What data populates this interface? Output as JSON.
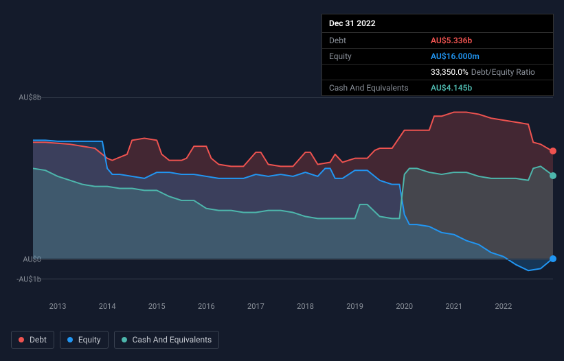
{
  "background_color": "#141b2b",
  "tooltip": {
    "date": "Dec 31 2022",
    "rows": [
      {
        "key": "Debt",
        "value": "AU$5.336b",
        "cls": "debt"
      },
      {
        "key": "Equity",
        "value": "AU$16.000m",
        "cls": "equity"
      },
      {
        "key": "",
        "value": "33,350.0%",
        "suffix": "Debt/Equity Ratio",
        "cls": ""
      },
      {
        "key": "Cash And Equivalents",
        "value": "AU$4.145b",
        "cls": "cash"
      }
    ]
  },
  "chart": {
    "type": "area",
    "y_axis_ticks": [
      {
        "label": "AU$8b",
        "value": 8
      },
      {
        "label": "AU$0",
        "value": 0
      },
      {
        "label": "-AU$1b",
        "value": -1
      }
    ],
    "ylim": [
      -1,
      8
    ],
    "x_axis_ticks": [
      "2013",
      "2014",
      "2015",
      "2016",
      "2017",
      "2018",
      "2019",
      "2020",
      "2021",
      "2022"
    ],
    "xlim": [
      2012.5,
      2023.0
    ],
    "grid_color": "#3a4250",
    "label_fontsize": 11,
    "label_color": "#8a9099",
    "series": {
      "debt": {
        "color": "#ef5350",
        "fill": "rgba(239,83,80,0.22)",
        "stroke_width": 2,
        "data": [
          [
            2012.5,
            5.8
          ],
          [
            2012.75,
            5.8
          ],
          [
            2013.0,
            5.75
          ],
          [
            2013.25,
            5.7
          ],
          [
            2013.5,
            5.6
          ],
          [
            2013.75,
            5.5
          ],
          [
            2014.0,
            5.0
          ],
          [
            2014.1,
            4.9
          ],
          [
            2014.2,
            5.0
          ],
          [
            2014.4,
            5.2
          ],
          [
            2014.5,
            5.9
          ],
          [
            2014.75,
            6.0
          ],
          [
            2015.0,
            5.9
          ],
          [
            2015.1,
            5.2
          ],
          [
            2015.25,
            4.9
          ],
          [
            2015.5,
            4.9
          ],
          [
            2015.6,
            5.0
          ],
          [
            2015.75,
            5.6
          ],
          [
            2016.0,
            5.6
          ],
          [
            2016.1,
            5.0
          ],
          [
            2016.25,
            4.7
          ],
          [
            2016.5,
            4.6
          ],
          [
            2016.75,
            4.6
          ],
          [
            2017.0,
            5.3
          ],
          [
            2017.1,
            5.3
          ],
          [
            2017.25,
            4.7
          ],
          [
            2017.5,
            4.6
          ],
          [
            2017.75,
            4.6
          ],
          [
            2018.0,
            5.3
          ],
          [
            2018.1,
            5.3
          ],
          [
            2018.25,
            4.7
          ],
          [
            2018.5,
            4.8
          ],
          [
            2018.6,
            5.2
          ],
          [
            2018.75,
            4.8
          ],
          [
            2019.0,
            5.0
          ],
          [
            2019.25,
            5.0
          ],
          [
            2019.4,
            5.4
          ],
          [
            2019.5,
            5.5
          ],
          [
            2019.75,
            5.5
          ],
          [
            2020.0,
            6.4
          ],
          [
            2020.25,
            6.4
          ],
          [
            2020.5,
            6.4
          ],
          [
            2020.6,
            7.1
          ],
          [
            2020.75,
            7.1
          ],
          [
            2021.0,
            7.3
          ],
          [
            2021.25,
            7.3
          ],
          [
            2021.5,
            7.2
          ],
          [
            2021.75,
            7.0
          ],
          [
            2022.0,
            6.9
          ],
          [
            2022.25,
            6.8
          ],
          [
            2022.5,
            6.7
          ],
          [
            2022.6,
            5.8
          ],
          [
            2022.75,
            5.7
          ],
          [
            2023.0,
            5.34
          ]
        ],
        "end_dot": [
          2023.0,
          5.34
        ]
      },
      "equity": {
        "color": "#2196f3",
        "fill": "rgba(33,150,243,0.22)",
        "stroke_width": 2,
        "data": [
          [
            2012.5,
            5.9
          ],
          [
            2012.75,
            5.9
          ],
          [
            2013.0,
            5.85
          ],
          [
            2013.25,
            5.85
          ],
          [
            2013.5,
            5.85
          ],
          [
            2013.75,
            5.85
          ],
          [
            2013.9,
            5.85
          ],
          [
            2014.0,
            4.5
          ],
          [
            2014.1,
            4.2
          ],
          [
            2014.25,
            4.2
          ],
          [
            2014.5,
            4.1
          ],
          [
            2014.75,
            4.0
          ],
          [
            2015.0,
            4.3
          ],
          [
            2015.25,
            4.3
          ],
          [
            2015.5,
            4.2
          ],
          [
            2015.75,
            4.2
          ],
          [
            2016.0,
            4.1
          ],
          [
            2016.25,
            4.0
          ],
          [
            2016.5,
            4.0
          ],
          [
            2016.75,
            4.0
          ],
          [
            2017.0,
            4.2
          ],
          [
            2017.25,
            4.1
          ],
          [
            2017.5,
            4.2
          ],
          [
            2017.75,
            4.1
          ],
          [
            2018.0,
            4.3
          ],
          [
            2018.25,
            4.1
          ],
          [
            2018.4,
            4.5
          ],
          [
            2018.5,
            4.5
          ],
          [
            2018.6,
            4.0
          ],
          [
            2018.75,
            4.0
          ],
          [
            2019.0,
            4.4
          ],
          [
            2019.25,
            4.4
          ],
          [
            2019.5,
            3.9
          ],
          [
            2019.75,
            3.7
          ],
          [
            2019.9,
            3.7
          ],
          [
            2020.0,
            2.2
          ],
          [
            2020.1,
            1.7
          ],
          [
            2020.25,
            1.7
          ],
          [
            2020.5,
            1.6
          ],
          [
            2020.75,
            1.3
          ],
          [
            2021.0,
            1.2
          ],
          [
            2021.25,
            0.9
          ],
          [
            2021.5,
            0.7
          ],
          [
            2021.75,
            0.3
          ],
          [
            2022.0,
            0.1
          ],
          [
            2022.25,
            -0.3
          ],
          [
            2022.5,
            -0.6
          ],
          [
            2022.75,
            -0.5
          ],
          [
            2023.0,
            0.016
          ]
        ],
        "end_dot": [
          2023.0,
          0.016
        ]
      },
      "cash": {
        "color": "#4db6ac",
        "fill": "rgba(77,182,172,0.22)",
        "stroke_width": 2,
        "data": [
          [
            2012.5,
            4.5
          ],
          [
            2012.75,
            4.4
          ],
          [
            2013.0,
            4.1
          ],
          [
            2013.25,
            3.9
          ],
          [
            2013.5,
            3.7
          ],
          [
            2013.75,
            3.6
          ],
          [
            2014.0,
            3.6
          ],
          [
            2014.25,
            3.5
          ],
          [
            2014.5,
            3.5
          ],
          [
            2014.75,
            3.4
          ],
          [
            2015.0,
            3.4
          ],
          [
            2015.25,
            3.1
          ],
          [
            2015.5,
            2.9
          ],
          [
            2015.75,
            2.9
          ],
          [
            2016.0,
            2.5
          ],
          [
            2016.25,
            2.4
          ],
          [
            2016.5,
            2.4
          ],
          [
            2016.75,
            2.3
          ],
          [
            2017.0,
            2.3
          ],
          [
            2017.25,
            2.4
          ],
          [
            2017.5,
            2.4
          ],
          [
            2017.75,
            2.3
          ],
          [
            2018.0,
            2.1
          ],
          [
            2018.25,
            2.0
          ],
          [
            2018.5,
            2.0
          ],
          [
            2018.75,
            2.0
          ],
          [
            2019.0,
            2.0
          ],
          [
            2019.1,
            2.7
          ],
          [
            2019.25,
            2.7
          ],
          [
            2019.5,
            2.1
          ],
          [
            2019.75,
            2.0
          ],
          [
            2019.9,
            2.0
          ],
          [
            2020.0,
            4.2
          ],
          [
            2020.1,
            4.5
          ],
          [
            2020.25,
            4.5
          ],
          [
            2020.5,
            4.3
          ],
          [
            2020.75,
            4.2
          ],
          [
            2021.0,
            4.3
          ],
          [
            2021.25,
            4.3
          ],
          [
            2021.5,
            4.1
          ],
          [
            2021.75,
            4.0
          ],
          [
            2022.0,
            4.0
          ],
          [
            2022.25,
            4.0
          ],
          [
            2022.5,
            3.9
          ],
          [
            2022.6,
            4.5
          ],
          [
            2022.75,
            4.6
          ],
          [
            2023.0,
            4.145
          ]
        ],
        "end_dot": [
          2023.0,
          4.145
        ]
      }
    }
  },
  "legend": [
    {
      "label": "Debt",
      "color": "#ef5350"
    },
    {
      "label": "Equity",
      "color": "#2196f3"
    },
    {
      "label": "Cash And Equivalents",
      "color": "#4db6ac"
    }
  ]
}
